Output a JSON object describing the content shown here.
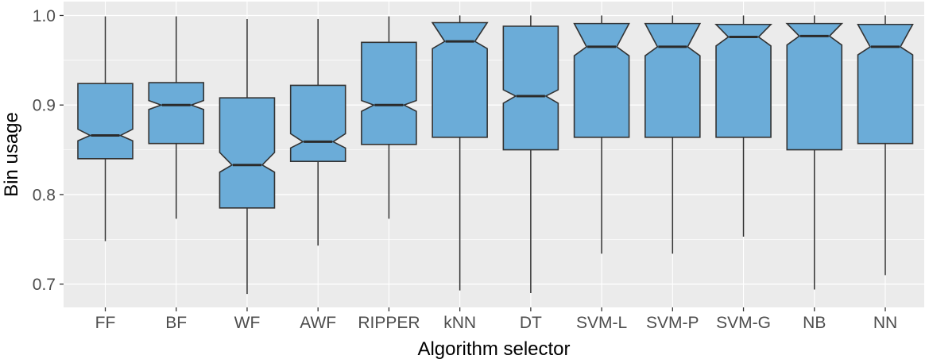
{
  "chart_data": {
    "type": "boxplot",
    "variant": "notched-boxplot",
    "title": "",
    "xlabel": "Algorithm selector",
    "ylabel": "Bin usage",
    "legend": false,
    "grid": true,
    "ylim": [
      0.674,
      1.0155
    ],
    "y_ticks": [
      {
        "value": 1.0,
        "label": "1.0"
      },
      {
        "value": 0.9,
        "label": "0.9"
      },
      {
        "value": 0.8,
        "label": "0.8"
      },
      {
        "value": 0.7,
        "label": "0.7"
      }
    ],
    "y_minor_gridlines": [
      0.95,
      0.85,
      0.75
    ],
    "categories": [
      "FF",
      "BF",
      "WF",
      "AWF",
      "RIPPER",
      "kNN",
      "DT",
      "SVM-L",
      "SVM-P",
      "SVM-G",
      "NB",
      "NN"
    ],
    "series": [
      {
        "label": "FF",
        "whisker_low": 0.748,
        "q1": 0.84,
        "notch_low": 0.86,
        "median": 0.866,
        "notch_high": 0.873,
        "q3": 0.924,
        "whisker_high": 0.999
      },
      {
        "label": "BF",
        "whisker_low": 0.773,
        "q1": 0.857,
        "notch_low": 0.895,
        "median": 0.9,
        "notch_high": 0.905,
        "q3": 0.925,
        "whisker_high": 0.999
      },
      {
        "label": "WF",
        "whisker_low": 0.689,
        "q1": 0.785,
        "notch_low": 0.825,
        "median": 0.833,
        "notch_high": 0.847,
        "q3": 0.908,
        "whisker_high": 0.996
      },
      {
        "label": "AWF",
        "whisker_low": 0.743,
        "q1": 0.837,
        "notch_low": 0.852,
        "median": 0.859,
        "notch_high": 0.868,
        "q3": 0.922,
        "whisker_high": 0.996
      },
      {
        "label": "RIPPER",
        "whisker_low": 0.773,
        "q1": 0.856,
        "notch_low": 0.893,
        "median": 0.9,
        "notch_high": 0.905,
        "q3": 0.97,
        "whisker_high": 0.999
      },
      {
        "label": "kNN",
        "whisker_low": 0.693,
        "q1": 0.864,
        "notch_low": 0.963,
        "median": 0.971,
        "notch_high": 0.992,
        "q3": 0.992,
        "whisker_high": 1.0
      },
      {
        "label": "DT",
        "whisker_low": 0.69,
        "q1": 0.85,
        "notch_low": 0.902,
        "median": 0.91,
        "notch_high": 0.917,
        "q3": 0.988,
        "whisker_high": 1.0
      },
      {
        "label": "SVM-L",
        "whisker_low": 0.734,
        "q1": 0.864,
        "notch_low": 0.955,
        "median": 0.965,
        "notch_high": 0.991,
        "q3": 0.991,
        "whisker_high": 1.0
      },
      {
        "label": "SVM-P",
        "whisker_low": 0.734,
        "q1": 0.864,
        "notch_low": 0.955,
        "median": 0.965,
        "notch_high": 0.991,
        "q3": 0.991,
        "whisker_high": 1.0
      },
      {
        "label": "SVM-G",
        "whisker_low": 0.753,
        "q1": 0.864,
        "notch_low": 0.966,
        "median": 0.976,
        "notch_high": 0.99,
        "q3": 0.99,
        "whisker_high": 1.0
      },
      {
        "label": "NB",
        "whisker_low": 0.694,
        "q1": 0.85,
        "notch_low": 0.967,
        "median": 0.977,
        "notch_high": 0.991,
        "q3": 0.991,
        "whisker_high": 1.0
      },
      {
        "label": "NN",
        "whisker_low": 0.71,
        "q1": 0.857,
        "notch_low": 0.956,
        "median": 0.965,
        "notch_high": 0.99,
        "q3": 0.99,
        "whisker_high": 1.0
      }
    ],
    "colors": {
      "panel_background": "#EBEBEB",
      "gridline": "#FFFFFF",
      "box_fill": "#6BACD8",
      "box_stroke": "#333333",
      "median_stroke": "#2B2B2B",
      "whisker_stroke": "#333333",
      "tick_mark": "#333333",
      "axis_text": "#4D4D4D",
      "axis_title": "#000000"
    }
  }
}
